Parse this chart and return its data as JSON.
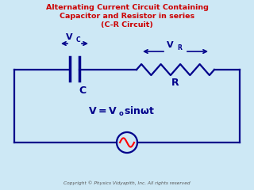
{
  "title_line1": "Alternating Current Circuit Containing",
  "title_line2": "Capacitor and Resistor in series",
  "title_line3": "(C-R Circuit)",
  "title_color": "#cc0000",
  "title_fontsize": 6.8,
  "circuit_color": "#00008B",
  "label_color": "#00008B",
  "bg_color": "#cde8f5",
  "copyright": "Copyright © Physics Vidyapith, Inc. All rights reserved",
  "copyright_color": "#555555",
  "vc_label": "V",
  "vc_sub": "C",
  "vr_label": "V",
  "vr_sub": "R",
  "cap_label": "C",
  "res_label": "R",
  "circuit_lw": 1.6,
  "cap_lw": 2.5,
  "res_lw": 1.6
}
